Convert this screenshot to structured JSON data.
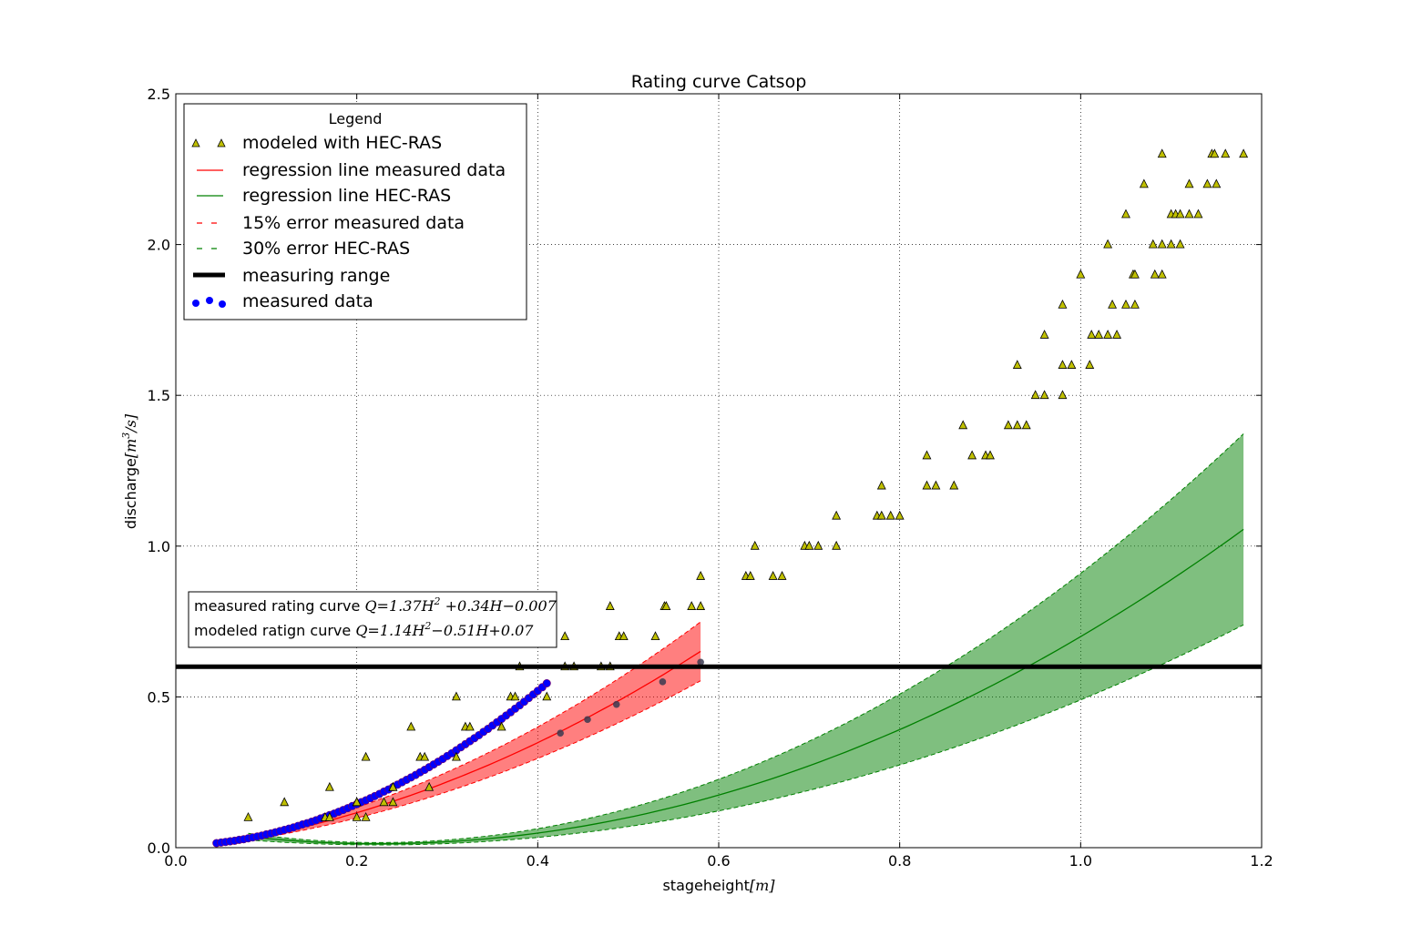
{
  "chart_data": {
    "type": "scatter",
    "title": "Rating curve Catsop",
    "xlabel_text": "stageheight",
    "xlabel_unit": "[m]",
    "ylabel_text": "discharge",
    "ylabel_unit_prefix": "[m",
    "ylabel_unit_exp": "3",
    "ylabel_unit_suffix": "/s]",
    "xlim": [
      0.0,
      1.2
    ],
    "ylim": [
      0.0,
      2.5
    ],
    "xticks": [
      "0.0",
      "0.2",
      "0.4",
      "0.6",
      "0.8",
      "1.0",
      "1.2"
    ],
    "yticks": [
      "0.0",
      "0.5",
      "1.0",
      "1.5",
      "2.0",
      "2.5"
    ],
    "grid": true,
    "legend": {
      "title": "Legend",
      "position": "top-left",
      "entries": [
        "modeled with HEC-RAS",
        "regression line measured data",
        "regression line HEC-RAS",
        "15% error measured data",
        "30% error HEC-RAS",
        "measuring range",
        "measured data"
      ]
    },
    "annotation": {
      "line1_label": "measured rating curve",
      "line1_eq": "Q=1.37H",
      "line1_eq_exp": "2",
      "line1_eq_rest": " +0.34H−0.007",
      "line2_label": "modeled ratign curve",
      "line2_eq": "Q=1.14H",
      "line2_eq_exp": "2",
      "line2_eq_rest": "−0.51H+0.07"
    },
    "measuring_range": 0.6,
    "regression_measured": {
      "a": 1.37,
      "b": 0.34,
      "c": -0.007,
      "xmin": 0.045,
      "xmax": 0.58,
      "error": 0.15
    },
    "regression_hecras": {
      "a": 1.14,
      "b": -0.51,
      "c": 0.07,
      "xmin": 0.08,
      "xmax": 1.18,
      "error": 0.3
    },
    "colors": {
      "modeled_marker": "#bfbf00",
      "measured_marker": "#0000ff",
      "regression_measured": "#ff0000",
      "regression_hecras": "#008000",
      "band_measured": "#ff0000",
      "band_hecras": "#008000",
      "measuring_range": "#000000"
    },
    "series": [
      {
        "name": "modeled with HEC-RAS",
        "x": [
          0.08,
          0.12,
          0.165,
          0.17,
          0.17,
          0.2,
          0.2,
          0.2,
          0.21,
          0.21,
          0.23,
          0.24,
          0.24,
          0.24,
          0.26,
          0.27,
          0.275,
          0.28,
          0.31,
          0.31,
          0.32,
          0.325,
          0.36,
          0.37,
          0.375,
          0.38,
          0.41,
          0.43,
          0.43,
          0.44,
          0.47,
          0.48,
          0.48,
          0.49,
          0.495,
          0.53,
          0.54,
          0.542,
          0.57,
          0.58,
          0.58,
          0.63,
          0.635,
          0.64,
          0.66,
          0.67,
          0.695,
          0.7,
          0.71,
          0.73,
          0.73,
          0.775,
          0.78,
          0.78,
          0.79,
          0.8,
          0.83,
          0.83,
          0.84,
          0.86,
          0.87,
          0.88,
          0.895,
          0.9,
          0.92,
          0.93,
          0.93,
          0.94,
          0.95,
          0.96,
          0.96,
          0.98,
          0.98,
          0.98,
          0.99,
          1.0,
          1.01,
          1.012,
          1.02,
          1.03,
          1.03,
          1.035,
          1.04,
          1.05,
          1.05,
          1.058,
          1.06,
          1.06,
          1.07,
          1.08,
          1.082,
          1.09,
          1.09,
          1.09,
          1.1,
          1.1,
          1.105,
          1.11,
          1.11,
          1.12,
          1.12,
          1.13,
          1.14,
          1.145,
          1.148,
          1.15,
          1.16,
          1.18
        ],
        "y": [
          0.1,
          0.15,
          0.1,
          0.1,
          0.2,
          0.15,
          0.1,
          0.15,
          0.3,
          0.1,
          0.15,
          0.2,
          0.15,
          0.2,
          0.4,
          0.3,
          0.3,
          0.2,
          0.3,
          0.5,
          0.4,
          0.4,
          0.4,
          0.5,
          0.5,
          0.6,
          0.5,
          0.7,
          0.6,
          0.6,
          0.6,
          0.8,
          0.6,
          0.7,
          0.7,
          0.7,
          0.8,
          0.8,
          0.8,
          0.9,
          0.8,
          0.9,
          0.9,
          1.0,
          0.9,
          0.9,
          1.0,
          1.0,
          1.0,
          1.1,
          1.0,
          1.1,
          1.2,
          1.1,
          1.1,
          1.1,
          1.3,
          1.2,
          1.2,
          1.2,
          1.4,
          1.3,
          1.3,
          1.3,
          1.4,
          1.6,
          1.4,
          1.4,
          1.5,
          1.7,
          1.5,
          1.8,
          1.6,
          1.5,
          1.6,
          1.9,
          1.6,
          1.7,
          1.7,
          2.0,
          1.7,
          1.8,
          1.7,
          2.1,
          1.8,
          1.9,
          1.9,
          1.8,
          2.2,
          2.0,
          1.9,
          2.3,
          2.0,
          1.9,
          2.1,
          2.0,
          2.1,
          2.1,
          2.0,
          2.2,
          2.1,
          2.1,
          2.2,
          2.3,
          2.3,
          2.2,
          2.3,
          2.3
        ]
      },
      {
        "name": "measured data",
        "x": [
          0.045,
          0.05,
          0.055,
          0.06,
          0.065,
          0.07,
          0.075,
          0.08,
          0.085,
          0.09,
          0.095,
          0.1,
          0.105,
          0.11,
          0.115,
          0.12,
          0.125,
          0.13,
          0.135,
          0.14,
          0.145,
          0.15,
          0.155,
          0.16,
          0.165,
          0.17,
          0.175,
          0.18,
          0.185,
          0.19,
          0.195,
          0.2,
          0.205,
          0.21,
          0.215,
          0.22,
          0.225,
          0.23,
          0.235,
          0.24,
          0.245,
          0.25,
          0.255,
          0.26,
          0.265,
          0.27,
          0.275,
          0.28,
          0.285,
          0.29,
          0.295,
          0.3,
          0.305,
          0.31,
          0.315,
          0.32,
          0.325,
          0.33,
          0.335,
          0.34,
          0.345,
          0.35,
          0.355,
          0.36,
          0.365,
          0.37,
          0.375,
          0.38,
          0.385,
          0.39,
          0.395,
          0.4,
          0.405,
          0.41,
          0.425,
          0.455,
          0.487,
          0.538,
          0.58
        ],
        "y": [
          0.015,
          0.017,
          0.019,
          0.021,
          0.023,
          0.026,
          0.028,
          0.031,
          0.034,
          0.037,
          0.04,
          0.044,
          0.047,
          0.051,
          0.055,
          0.059,
          0.063,
          0.067,
          0.072,
          0.077,
          0.081,
          0.086,
          0.091,
          0.097,
          0.102,
          0.108,
          0.113,
          0.119,
          0.125,
          0.131,
          0.138,
          0.144,
          0.151,
          0.157,
          0.164,
          0.171,
          0.178,
          0.186,
          0.193,
          0.201,
          0.209,
          0.217,
          0.225,
          0.233,
          0.241,
          0.25,
          0.258,
          0.267,
          0.276,
          0.285,
          0.294,
          0.304,
          0.313,
          0.323,
          0.333,
          0.343,
          0.353,
          0.363,
          0.373,
          0.384,
          0.394,
          0.405,
          0.416,
          0.427,
          0.438,
          0.449,
          0.461,
          0.472,
          0.484,
          0.496,
          0.508,
          0.52,
          0.532,
          0.545,
          0.38,
          0.425,
          0.475,
          0.55,
          0.615
        ]
      }
    ]
  }
}
